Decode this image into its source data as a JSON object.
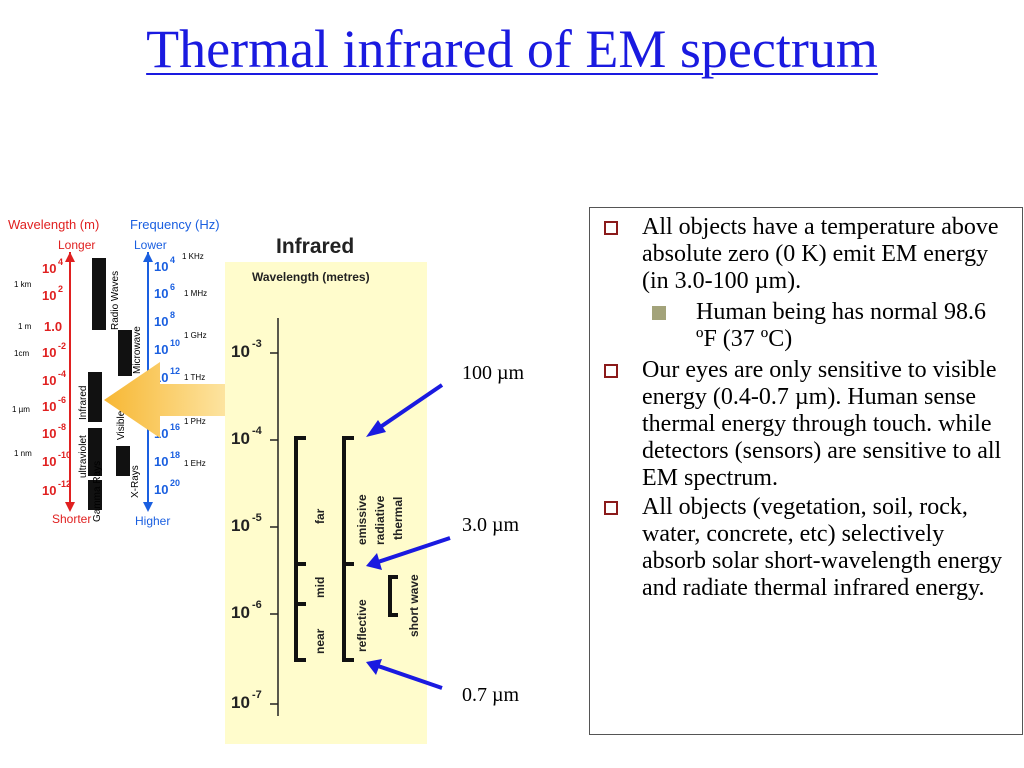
{
  "title": "Thermal infrared of EM spectrum",
  "left_scale": {
    "wavelength_header": "Wavelength (m)",
    "frequency_header": "Frequency (Hz)",
    "longer": "Longer",
    "shorter": "Shorter",
    "lower": "Lower",
    "higher": "Higher",
    "wl_ticks": [
      "10",
      "10",
      "1.0",
      "10",
      "10",
      "10",
      "10",
      "10",
      "10"
    ],
    "wl_exps": [
      "4",
      "2",
      "",
      "-2",
      "-4",
      "-6",
      "-8",
      "-10",
      "-12"
    ],
    "fr_ticks": [
      "10",
      "10",
      "10",
      "10",
      "10",
      "10",
      "10",
      "10",
      "10"
    ],
    "fr_exps": [
      "4",
      "6",
      "8",
      "10",
      "12",
      "14",
      "16",
      "18",
      "20"
    ],
    "wl_markers": [
      "1 km",
      "1 m",
      "1cm",
      "1 µm",
      "1 nm"
    ],
    "fr_markers": [
      "1 KHz",
      "1 MHz",
      "1 GHz",
      "1 THz",
      "1 PHz",
      "1 EHz"
    ],
    "bands": [
      "Radio Waves",
      "Microwave",
      "Infrared",
      "Visible",
      "ultraviolet",
      "X-Rays",
      "Gamma Rays"
    ]
  },
  "infrared_panel": {
    "title": "Infrared",
    "axis_header": "Wavelength (metres)",
    "ticks": [
      "10",
      "10",
      "10",
      "10",
      "10"
    ],
    "tick_exps": [
      "-3",
      "-4",
      "-5",
      "-6",
      "-7"
    ],
    "col1": [
      "far",
      "mid",
      "near"
    ],
    "col2": [
      "emissive",
      "radiative",
      "thermal",
      "reflective"
    ],
    "col3": [
      "short wave"
    ]
  },
  "markers": [
    "100 µm",
    "3.0 µm",
    "0.7 µm"
  ],
  "colors": {
    "title": "#1a1ae0",
    "arrow": "#1a1ae0",
    "wavelength": "#e02020",
    "frequency": "#1a5fe0",
    "panel_bg": "#fffccc",
    "bullet": "#8b1a1a"
  },
  "bullets": [
    {
      "text": "All objects have a temperature above absolute zero (0 K) emit EM energy (in 3.0-100 µm).",
      "sub": [
        "Human being has normal 98.6 ºF (37 ºC)"
      ]
    },
    {
      "text": "Our eyes are only sensitive to visible energy (0.4-0.7 µm). Human sense thermal energy through touch. while detectors (sensors) are sensitive to all EM spectrum.",
      "sub": []
    },
    {
      "text": "All objects (vegetation, soil, rock, water, concrete, etc) selectively absorb solar short-wavelength energy and radiate thermal infrared energy.",
      "sub": []
    }
  ]
}
